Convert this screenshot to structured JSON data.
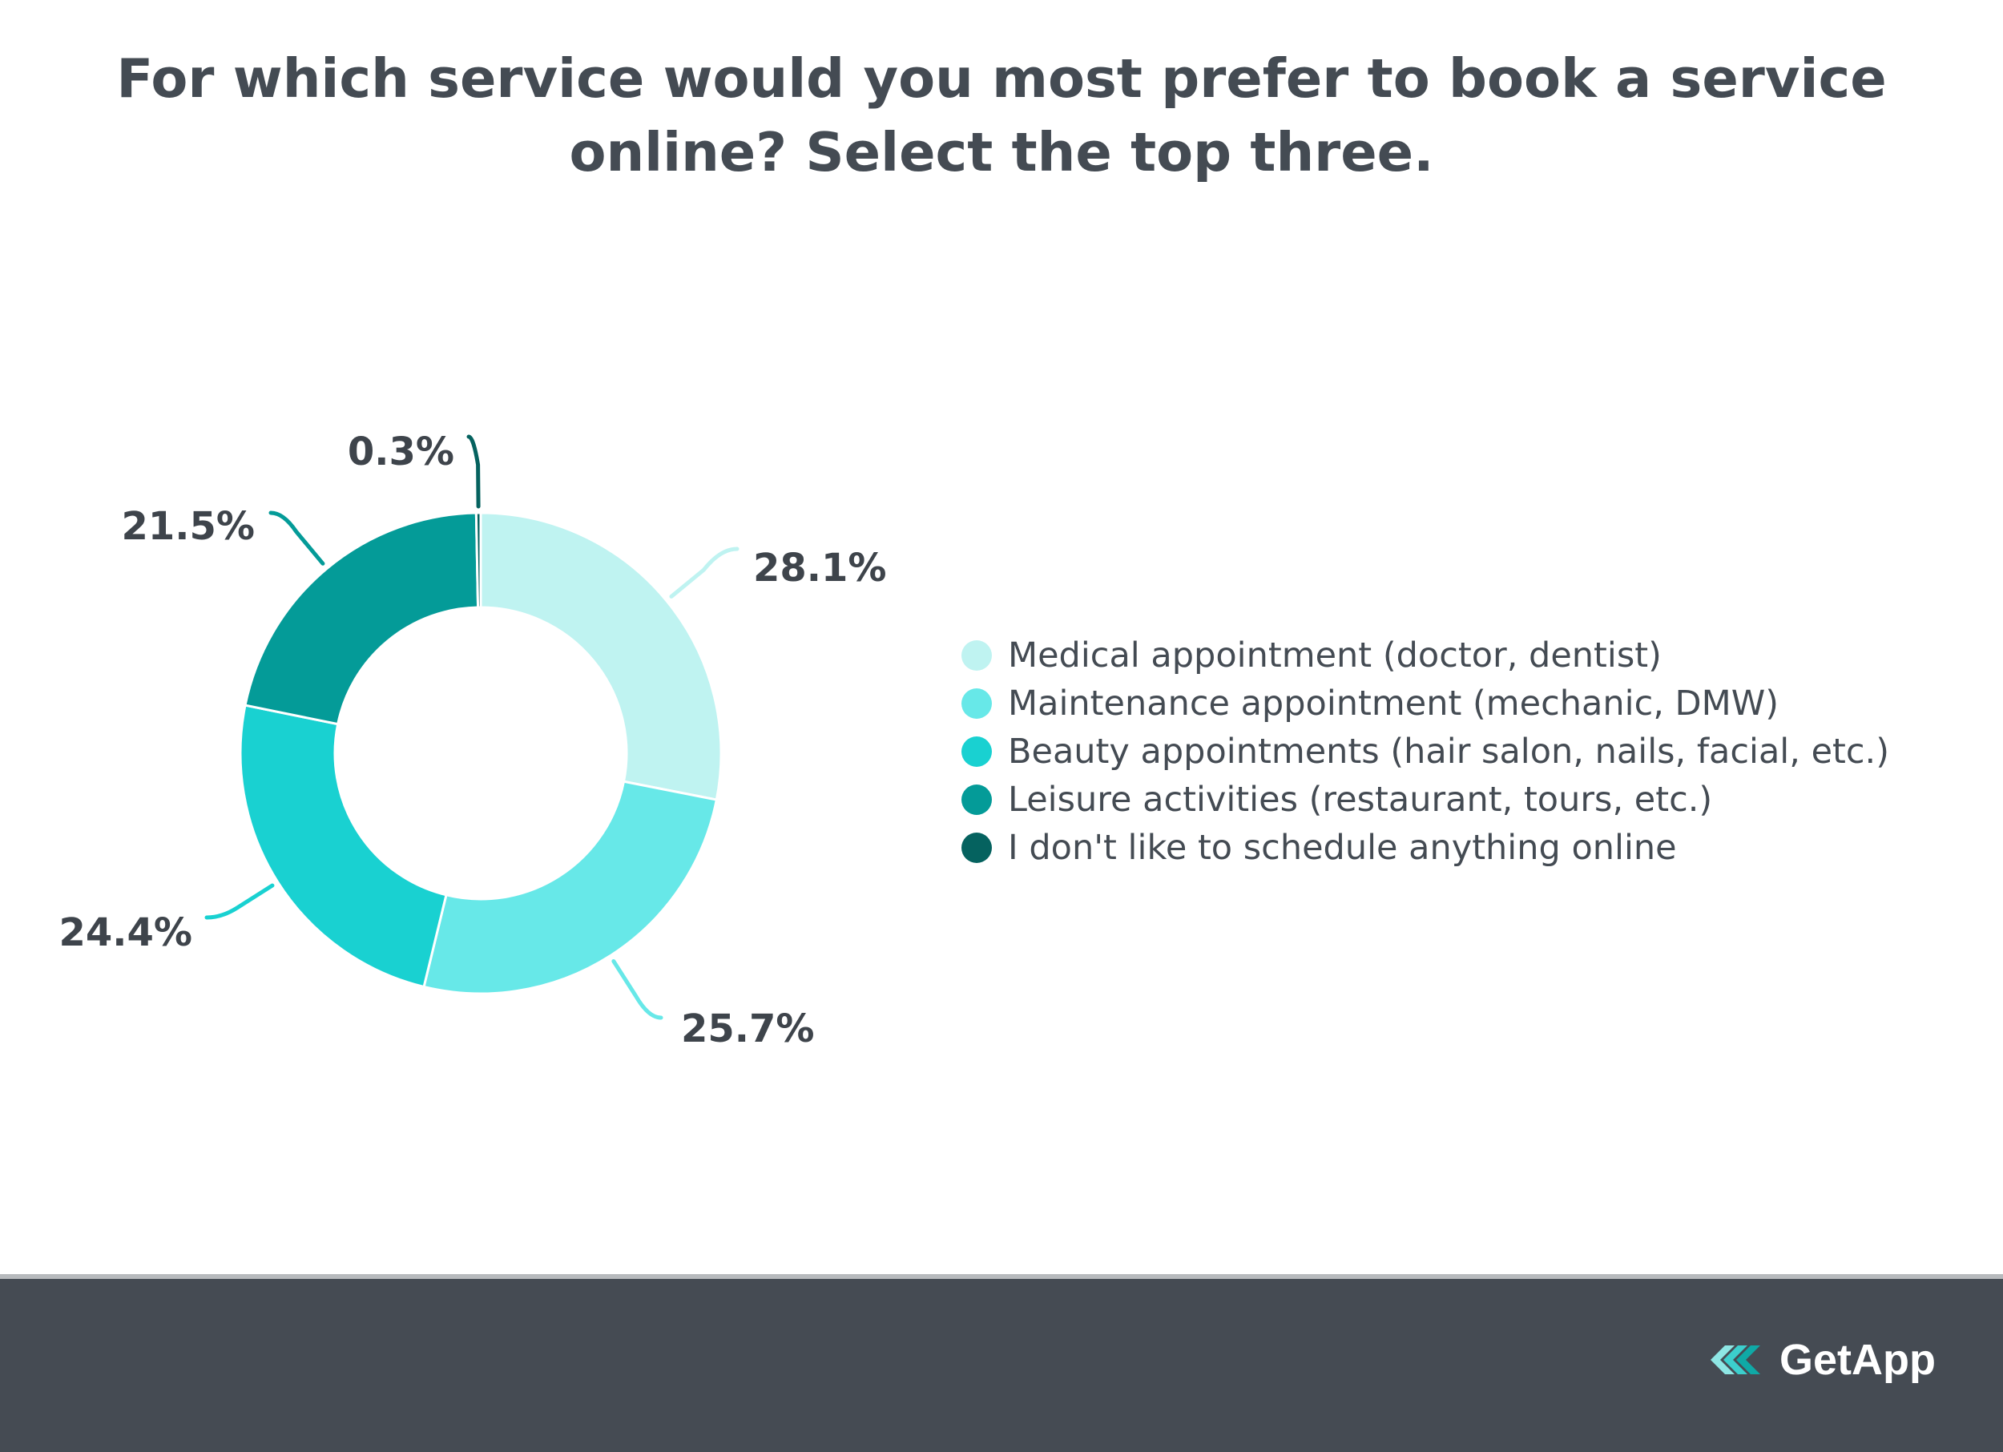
{
  "title": "For which service would you most prefer to book a service online? Select the top three.",
  "brand": {
    "name": "GetApp",
    "icon": "getapp-logo-icon"
  },
  "chart_data": {
    "type": "pie",
    "style": "donut",
    "title": "For which service would you most prefer to book a service online? Select the top three.",
    "legend_position": "right",
    "slices": [
      {
        "label": "Medical appointment (doctor, dentist)",
        "value": 28.1,
        "value_label": "28.1%",
        "color": "#bff3f1"
      },
      {
        "label": "Maintenance appointment (mechanic, DMW)",
        "value": 25.7,
        "value_label": "25.7%",
        "color": "#67e8e8"
      },
      {
        "label": "Beauty appointments (hair salon, nails, facial, etc.)",
        "value": 24.4,
        "value_label": "24.4%",
        "color": "#19d1d1"
      },
      {
        "label": "Leisure activities (restaurant, tours, etc.)",
        "value": 21.5,
        "value_label": "21.5%",
        "color": "#049b98"
      },
      {
        "label": "I don't like to schedule anything online",
        "value": 0.3,
        "value_label": "0.3%",
        "color": "#05625f"
      }
    ]
  }
}
